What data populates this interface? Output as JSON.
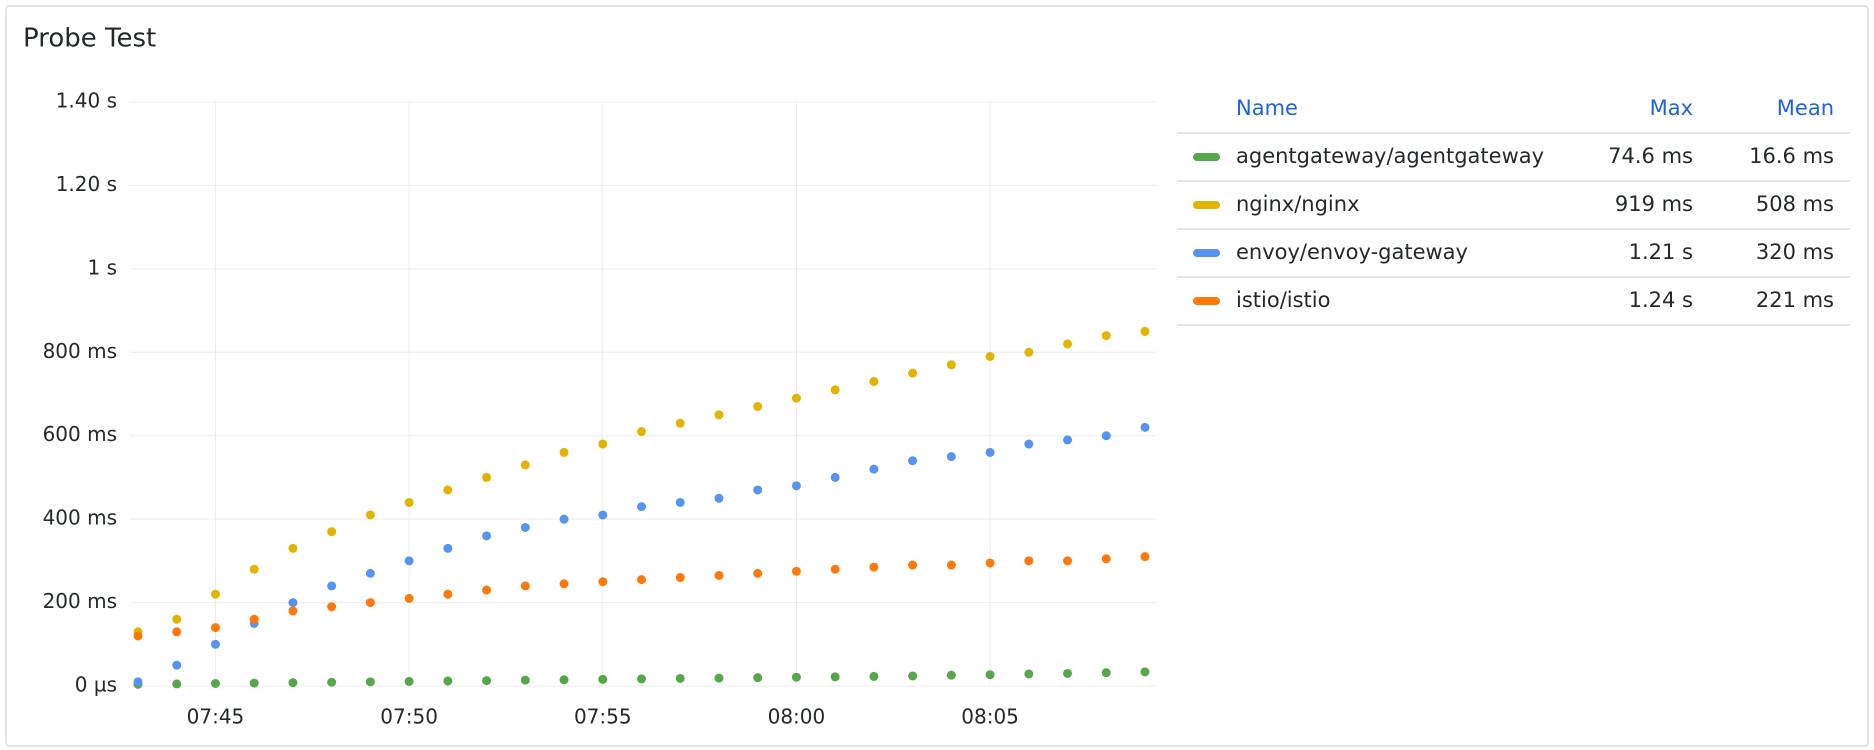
{
  "chart_data": {
    "type": "scatter",
    "title": "Probe Test",
    "x": [
      "07:43",
      "07:44",
      "07:45",
      "07:46",
      "07:47",
      "07:48",
      "07:49",
      "07:50",
      "07:51",
      "07:52",
      "07:53",
      "07:54",
      "07:55",
      "07:56",
      "07:57",
      "07:58",
      "07:59",
      "08:00",
      "08:01",
      "08:02",
      "08:03",
      "08:04",
      "08:05",
      "08:06",
      "08:07",
      "08:08",
      "08:09"
    ],
    "xlim": [
      "07:43",
      "08:09"
    ],
    "xticks": [
      "07:45",
      "07:50",
      "07:55",
      "08:00",
      "08:05"
    ],
    "ylim": [
      0,
      1.4
    ],
    "yticks": [
      {
        "value": 0,
        "label": "0 µs"
      },
      {
        "value": 0.2,
        "label": "200 ms"
      },
      {
        "value": 0.4,
        "label": "400 ms"
      },
      {
        "value": 0.6,
        "label": "600 ms"
      },
      {
        "value": 0.8,
        "label": "800 ms"
      },
      {
        "value": 1,
        "label": "1 s"
      },
      {
        "value": 1.2,
        "label": "1.20 s"
      },
      {
        "value": 1.4,
        "label": "1.40 s"
      }
    ],
    "grid": true,
    "series": [
      {
        "name": "agentgateway/agentgateway",
        "color": "#56a64b",
        "max": "74.6 ms",
        "mean": "16.6 ms",
        "values": [
          0.004,
          0.005,
          0.006,
          0.007,
          0.008,
          0.009,
          0.01,
          0.011,
          0.012,
          0.013,
          0.014,
          0.015,
          0.016,
          0.017,
          0.018,
          0.019,
          0.02,
          0.021,
          0.022,
          0.023,
          0.024,
          0.026,
          0.027,
          0.029,
          0.03,
          0.032,
          0.034
        ]
      },
      {
        "name": "nginx/nginx",
        "color": "#e0b400",
        "max": "919 ms",
        "mean": "508 ms",
        "values": [
          0.13,
          0.16,
          0.22,
          0.28,
          0.33,
          0.37,
          0.41,
          0.44,
          0.47,
          0.5,
          0.53,
          0.56,
          0.58,
          0.61,
          0.63,
          0.65,
          0.67,
          0.69,
          0.71,
          0.73,
          0.75,
          0.77,
          0.79,
          0.8,
          0.82,
          0.84,
          0.85
        ]
      },
      {
        "name": "envoy/envoy-gateway",
        "color": "#5794f2",
        "max": "1.21 s",
        "mean": "320 ms",
        "values": [
          0.01,
          0.05,
          0.1,
          0.15,
          0.2,
          0.24,
          0.27,
          0.3,
          0.33,
          0.36,
          0.38,
          0.4,
          0.41,
          0.43,
          0.44,
          0.45,
          0.47,
          0.48,
          0.5,
          0.52,
          0.54,
          0.55,
          0.56,
          0.58,
          0.59,
          0.6,
          0.62
        ]
      },
      {
        "name": "istio/istio",
        "color": "#ff780a",
        "max": "1.24 s",
        "mean": "221 ms",
        "values": [
          0.12,
          0.13,
          0.14,
          0.16,
          0.18,
          0.19,
          0.2,
          0.21,
          0.22,
          0.23,
          0.24,
          0.245,
          0.25,
          0.255,
          0.26,
          0.265,
          0.27,
          0.275,
          0.28,
          0.285,
          0.29,
          0.29,
          0.295,
          0.3,
          0.3,
          0.305,
          0.31
        ]
      }
    ],
    "legend": {
      "position": "right",
      "columns": [
        "Name",
        "Max",
        "Mean"
      ]
    }
  }
}
